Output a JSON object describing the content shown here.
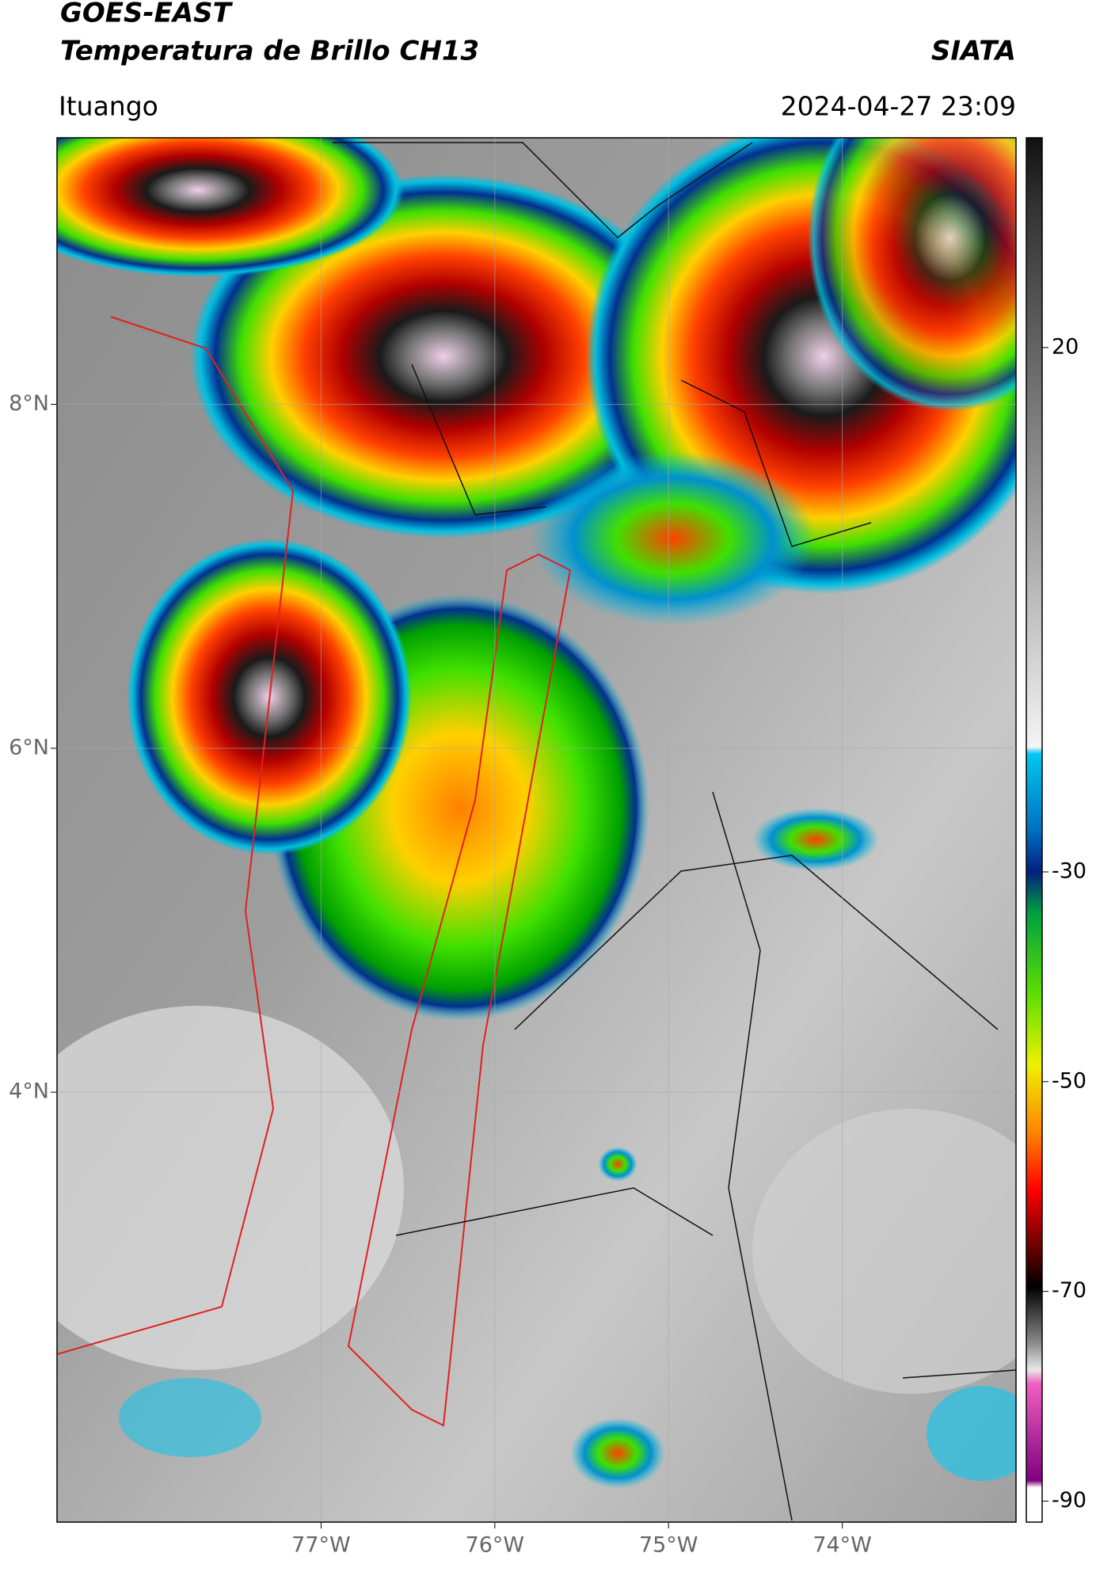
{
  "header": {
    "title": "GOES-EAST",
    "subtitle": "Temperatura de Brillo CH13",
    "organization": "SIATA",
    "location": "Ituango",
    "datetime": "2024-04-27 23:09"
  },
  "map": {
    "xlim": [
      -78.52,
      -73.0
    ],
    "ylim": [
      1.5,
      9.55
    ],
    "xticks": [
      {
        "value": -77,
        "label": "77°W"
      },
      {
        "value": -76,
        "label": "76°W"
      },
      {
        "value": -75,
        "label": "75°W"
      },
      {
        "value": -74,
        "label": "74°W"
      }
    ],
    "yticks": [
      {
        "value": 8,
        "label": "8°N"
      },
      {
        "value": 6,
        "label": "6°N"
      },
      {
        "value": 4,
        "label": "4°N"
      }
    ],
    "grid": true
  },
  "colorbar": {
    "lim": [
      -92,
      40
    ],
    "ticks": [
      20,
      -30,
      -50,
      -70,
      -90
    ]
  }
}
